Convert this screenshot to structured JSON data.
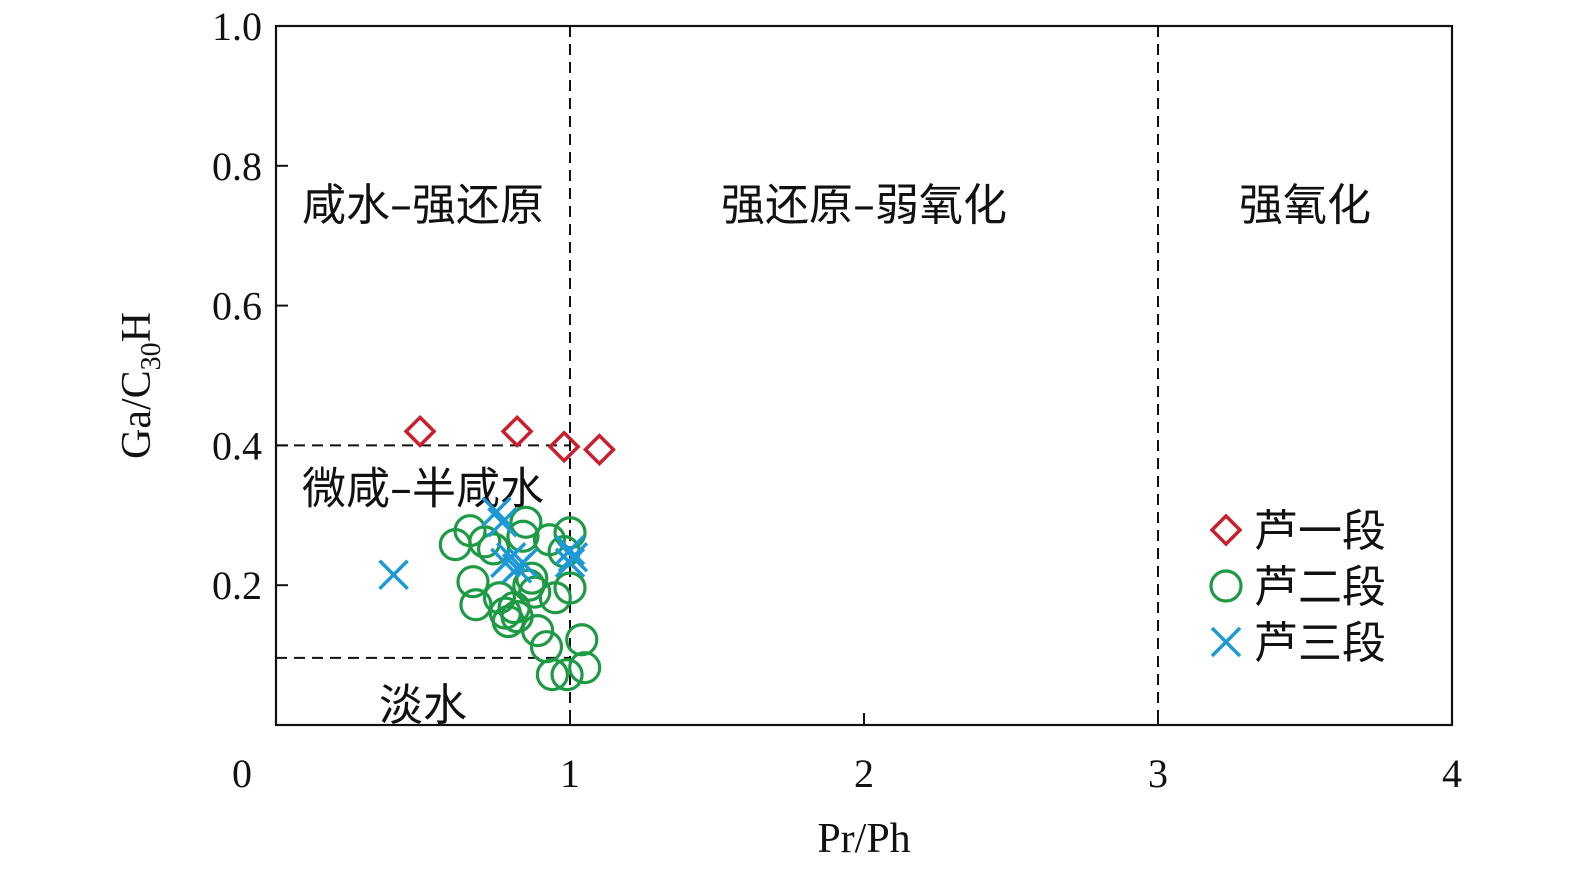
{
  "chart_data": {
    "type": "scatter",
    "xlabel": "Pr/Ph",
    "ylabel": {
      "main": "Ga/C",
      "sub": "30",
      "tail": "H"
    },
    "xlim": [
      0,
      4
    ],
    "ylim": [
      0,
      1.0
    ],
    "x_ticks": [
      "0",
      "1",
      "2",
      "3",
      "4"
    ],
    "y_ticks": [
      "0.2",
      "0.4",
      "0.6",
      "0.8",
      "1.0"
    ],
    "grid": false,
    "legend_position": "right",
    "boundaries": {
      "vertical_x": [
        1,
        3
      ],
      "horizontal_y": [
        0.4,
        0.096
      ],
      "horizontal_x_range": [
        0,
        1
      ]
    },
    "region_labels": [
      {
        "text": "咸水–强还原",
        "x": 0.5,
        "y": 0.745
      },
      {
        "text": "强还原–弱氧化",
        "x": 2.0,
        "y": 0.745
      },
      {
        "text": "强氧化",
        "x": 3.5,
        "y": 0.745
      },
      {
        "text": "微咸–半咸水",
        "x": 0.5,
        "y": 0.34
      },
      {
        "text": "淡水",
        "x": 0.5,
        "y": 0.03
      }
    ],
    "series": [
      {
        "name": "芦一段",
        "marker": "diamond",
        "color": "#c8202f",
        "points": [
          {
            "x": 0.49,
            "y": 0.42
          },
          {
            "x": 0.82,
            "y": 0.42
          },
          {
            "x": 0.98,
            "y": 0.398
          },
          {
            "x": 1.1,
            "y": 0.394
          }
        ]
      },
      {
        "name": "芦二段",
        "marker": "circle",
        "color": "#1e9a45",
        "points": [
          {
            "x": 0.61,
            "y": 0.258
          },
          {
            "x": 0.66,
            "y": 0.278
          },
          {
            "x": 0.67,
            "y": 0.205
          },
          {
            "x": 0.68,
            "y": 0.172
          },
          {
            "x": 0.71,
            "y": 0.262
          },
          {
            "x": 0.74,
            "y": 0.252
          },
          {
            "x": 0.76,
            "y": 0.182
          },
          {
            "x": 0.78,
            "y": 0.16
          },
          {
            "x": 0.79,
            "y": 0.148
          },
          {
            "x": 0.81,
            "y": 0.168
          },
          {
            "x": 0.82,
            "y": 0.155
          },
          {
            "x": 0.84,
            "y": 0.27
          },
          {
            "x": 0.85,
            "y": 0.29
          },
          {
            "x": 0.86,
            "y": 0.2
          },
          {
            "x": 0.87,
            "y": 0.21
          },
          {
            "x": 0.88,
            "y": 0.19
          },
          {
            "x": 0.89,
            "y": 0.135
          },
          {
            "x": 0.92,
            "y": 0.112
          },
          {
            "x": 0.93,
            "y": 0.265
          },
          {
            "x": 0.94,
            "y": 0.072
          },
          {
            "x": 0.95,
            "y": 0.182
          },
          {
            "x": 0.98,
            "y": 0.248
          },
          {
            "x": 0.99,
            "y": 0.072
          },
          {
            "x": 1.0,
            "y": 0.196
          },
          {
            "x": 1.0,
            "y": 0.275
          },
          {
            "x": 1.04,
            "y": 0.122
          },
          {
            "x": 1.05,
            "y": 0.082
          }
        ]
      },
      {
        "name": "芦三段",
        "marker": "x",
        "color": "#1d9ad6",
        "points": [
          {
            "x": 0.4,
            "y": 0.215
          },
          {
            "x": 0.75,
            "y": 0.305
          },
          {
            "x": 0.77,
            "y": 0.29
          },
          {
            "x": 0.78,
            "y": 0.232
          },
          {
            "x": 0.8,
            "y": 0.24
          },
          {
            "x": 0.82,
            "y": 0.224
          },
          {
            "x": 0.84,
            "y": 0.232
          },
          {
            "x": 1.0,
            "y": 0.25
          },
          {
            "x": 1.0,
            "y": 0.232
          },
          {
            "x": 1.01,
            "y": 0.24
          }
        ]
      }
    ]
  }
}
